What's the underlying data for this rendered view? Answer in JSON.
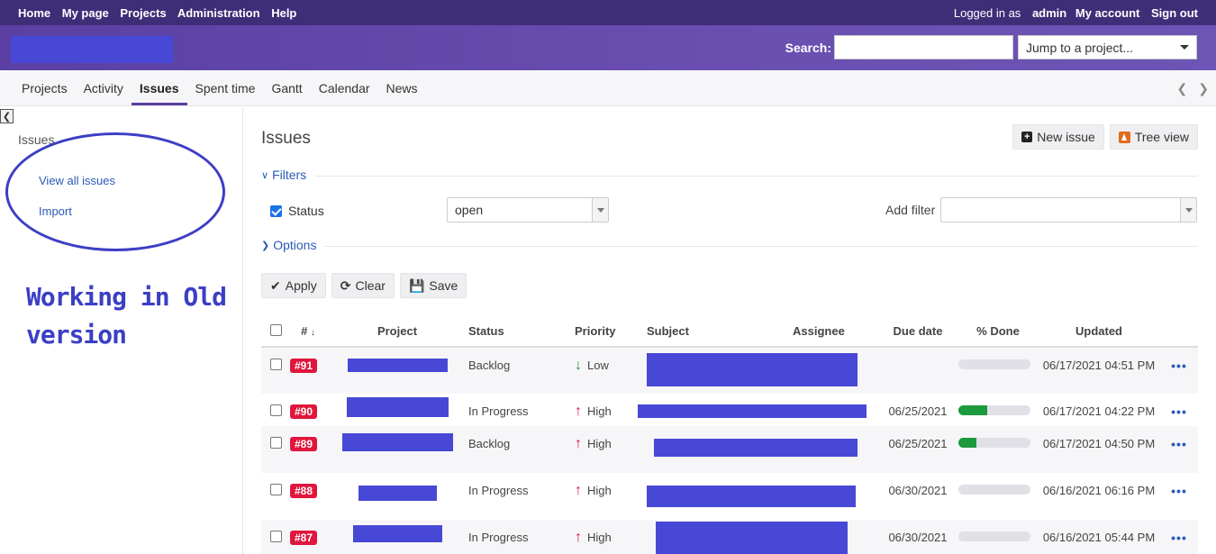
{
  "top_menu": {
    "left": [
      "Home",
      "My page",
      "Projects",
      "Administration",
      "Help"
    ],
    "logged_in_prefix": "Logged in as",
    "user": "admin",
    "my_account": "My account",
    "sign_out": "Sign out"
  },
  "header": {
    "search_label": "Search:",
    "search_value": "",
    "jump_label": "Jump to a project..."
  },
  "main_menu": {
    "tabs": [
      "Projects",
      "Activity",
      "Issues",
      "Spent time",
      "Gantt",
      "Calendar",
      "News"
    ],
    "selected": "Issues"
  },
  "sidebar": {
    "title": "Issues",
    "links": [
      "View all issues",
      "Import"
    ],
    "note_line1": "Working in Old",
    "note_line2": "version"
  },
  "content": {
    "title": "Issues",
    "new_issue": "New issue",
    "tree_view": "Tree view",
    "filters_legend": "Filters",
    "options_legend": "Options",
    "filter_status_label": "Status",
    "filter_status_value": "open",
    "add_filter_label": "Add filter",
    "apply": "Apply",
    "clear": "Clear",
    "save": "Save"
  },
  "table": {
    "headers": [
      "#",
      "Project",
      "Status",
      "Priority",
      "Subject",
      "Assignee",
      "Due date",
      "% Done",
      "Updated"
    ],
    "rows": [
      {
        "id": "#91",
        "status": "Backlog",
        "priority": "Low",
        "due": "",
        "done": 0,
        "updated": "06/17/2021 04:51 PM"
      },
      {
        "id": "#90",
        "status": "In Progress",
        "priority": "High",
        "due": "06/25/2021",
        "done": 40,
        "updated": "06/17/2021 04:22 PM"
      },
      {
        "id": "#89",
        "status": "Backlog",
        "priority": "High",
        "due": "06/25/2021",
        "done": 25,
        "updated": "06/17/2021 04:50 PM"
      },
      {
        "id": "#88",
        "status": "In Progress",
        "priority": "High",
        "due": "06/30/2021",
        "done": 0,
        "updated": "06/16/2021 06:16 PM"
      },
      {
        "id": "#87",
        "status": "In Progress",
        "priority": "High",
        "due": "06/30/2021",
        "done": 0,
        "updated": "06/16/2021 05:44 PM"
      }
    ],
    "row_more": "•••"
  },
  "colors": {
    "top_bar": "#3e2e78",
    "header": "#5b3fa3",
    "redaction": "#4848d6",
    "annotation": "#3b3fc4",
    "badge": "#e0163c",
    "progress": "#1c9a3c"
  }
}
